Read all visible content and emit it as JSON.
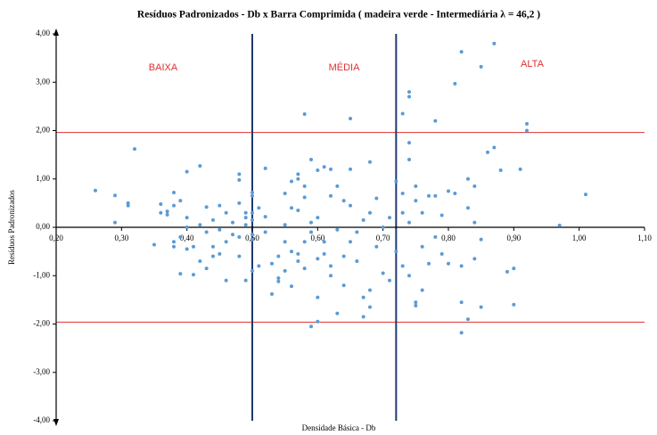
{
  "chart_data": {
    "type": "scatter",
    "title": "Resíduos Padronizados - Db x Barra Comprimida ( madeira verde - Intermediária λ = 46,2 )",
    "x_label": "Densidade Básica - Db",
    "y_label": "Resíduos Padronizados",
    "color": "#5b9bd5",
    "annotations": [
      {
        "text": "BAIXA",
        "color": "#e03030"
      },
      {
        "text": "MÉDIA",
        "color": "#e03030"
      },
      {
        "text": "ALTA",
        "color": "#e03030"
      }
    ],
    "vlines": [
      0.5,
      0.72
    ],
    "vline_color": "#1f3a6e",
    "hlines": [
      1.96,
      -1.96
    ],
    "hline_color": "#e03030",
    "xlim": [
      0.2,
      1.1
    ],
    "ylim": [
      -4,
      4
    ],
    "xticks": [
      {
        "value": 0.2,
        "label": "0,20"
      },
      {
        "value": 0.3,
        "label": "0,30"
      },
      {
        "value": 0.4,
        "label": "0,40"
      },
      {
        "value": 0.5,
        "label": "0,50"
      },
      {
        "value": 0.6,
        "label": "0,60"
      },
      {
        "value": 0.7,
        "label": "0,70"
      },
      {
        "value": 0.8,
        "label": "0,80"
      },
      {
        "value": 0.9,
        "label": "0,90"
      },
      {
        "value": 1.0,
        "label": "1,00"
      },
      {
        "value": 1.1,
        "label": "1,10"
      }
    ],
    "yticks": [
      {
        "value": -4,
        "label": "-4,00"
      },
      {
        "value": -3,
        "label": "-3,00"
      },
      {
        "value": -2,
        "label": "-2,00"
      },
      {
        "value": -1,
        "label": "-1,00"
      },
      {
        "value": 0,
        "label": "0,00"
      },
      {
        "value": 1,
        "label": "1,00"
      },
      {
        "value": 2,
        "label": "2,00"
      },
      {
        "value": 3,
        "label": "3,00"
      },
      {
        "value": 4,
        "label": "4,00"
      }
    ],
    "x": [
      0.26,
      0.29,
      0.29,
      0.31,
      0.31,
      0.32,
      0.35,
      0.36,
      0.36,
      0.37,
      0.37,
      0.38,
      0.38,
      0.38,
      0.38,
      0.39,
      0.39,
      0.39,
      0.4,
      0.4,
      0.4,
      0.4,
      0.41,
      0.41,
      0.42,
      0.42,
      0.42,
      0.43,
      0.43,
      0.43,
      0.44,
      0.44,
      0.44,
      0.45,
      0.45,
      0.45,
      0.46,
      0.46,
      0.46,
      0.47,
      0.47,
      0.48,
      0.48,
      0.48,
      0.48,
      0.48,
      0.49,
      0.49,
      0.49,
      0.49,
      0.5,
      0.5,
      0.5,
      0.5,
      0.5,
      0.5,
      0.5,
      0.51,
      0.51,
      0.52,
      0.52,
      0.52,
      0.53,
      0.53,
      0.54,
      0.54,
      0.54,
      0.55,
      0.55,
      0.55,
      0.55,
      0.56,
      0.56,
      0.56,
      0.56,
      0.57,
      0.57,
      0.57,
      0.57,
      0.57,
      0.58,
      0.58,
      0.58,
      0.58,
      0.58,
      0.59,
      0.59,
      0.59,
      0.59,
      0.6,
      0.6,
      0.6,
      0.6,
      0.6,
      0.61,
      0.61,
      0.61,
      0.62,
      0.62,
      0.62,
      0.62,
      0.63,
      0.63,
      0.63,
      0.64,
      0.64,
      0.64,
      0.65,
      0.65,
      0.65,
      0.65,
      0.66,
      0.66,
      0.67,
      0.67,
      0.67,
      0.68,
      0.68,
      0.68,
      0.68,
      0.69,
      0.69,
      0.7,
      0.7,
      0.71,
      0.71,
      0.72,
      0.72,
      0.73,
      0.73,
      0.73,
      0.73,
      0.74,
      0.74,
      0.74,
      0.74,
      0.74,
      0.74,
      0.75,
      0.75,
      0.75,
      0.75,
      0.76,
      0.76,
      0.76,
      0.77,
      0.77,
      0.78,
      0.78,
      0.78,
      0.79,
      0.79,
      0.8,
      0.8,
      0.81,
      0.81,
      0.82,
      0.82,
      0.82,
      0.82,
      0.83,
      0.83,
      0.83,
      0.84,
      0.84,
      0.84,
      0.85,
      0.85,
      0.85,
      0.86,
      0.87,
      0.87,
      0.88,
      0.89,
      0.9,
      0.9,
      0.91,
      0.92,
      0.92,
      0.97,
      1.01
    ],
    "values": [
      0.76,
      0.66,
      0.1,
      0.45,
      0.5,
      1.62,
      -0.36,
      0.48,
      0.3,
      0.26,
      0.33,
      0.72,
      0.45,
      -0.3,
      -0.4,
      0.55,
      -0.96,
      -0.2,
      0.0,
      1.15,
      0.2,
      -0.45,
      -0.98,
      -0.4,
      1.27,
      -0.7,
      0.05,
      0.42,
      -0.1,
      -0.85,
      0.15,
      -0.6,
      -0.4,
      -0.05,
      0.45,
      -0.55,
      -0.3,
      0.3,
      -1.1,
      0.1,
      -0.15,
      1.1,
      0.98,
      0.5,
      -0.2,
      -0.6,
      0.3,
      0.2,
      -1.1,
      0.05,
      0.72,
      0.65,
      0.3,
      0.15,
      -0.25,
      -0.9,
      -0.15,
      0.4,
      -0.8,
      1.22,
      0.22,
      -0.1,
      -1.38,
      -0.75,
      -1.12,
      -1.05,
      -0.6,
      0.7,
      0.05,
      -0.3,
      -0.9,
      0.95,
      0.4,
      -0.5,
      -1.22,
      1.0,
      1.1,
      0.35,
      -0.55,
      -0.7,
      2.34,
      0.85,
      0.62,
      -0.3,
      -0.85,
      1.4,
      -2.05,
      -0.1,
      0.1,
      1.18,
      0.2,
      -0.65,
      -1.45,
      -1.95,
      1.25,
      -0.3,
      -0.55,
      1.2,
      0.65,
      -0.8,
      -1.0,
      0.85,
      -1.78,
      -0.05,
      0.55,
      -0.6,
      -1.2,
      2.25,
      1.2,
      0.45,
      -0.3,
      -0.1,
      -0.7,
      0.15,
      -1.85,
      -1.45,
      1.35,
      0.3,
      -1.3,
      -1.65,
      0.6,
      -0.4,
      -0.95,
      0.0,
      0.2,
      -1.1,
      0.95,
      -0.5,
      2.35,
      0.7,
      0.3,
      -0.8,
      2.8,
      2.7,
      1.75,
      1.4,
      -1.0,
      0.1,
      0.85,
      -1.55,
      -1.62,
      0.55,
      0.3,
      -0.4,
      -1.3,
      0.65,
      -0.75,
      2.2,
      0.65,
      -0.2,
      0.25,
      -0.55,
      0.75,
      -0.75,
      2.97,
      0.7,
      3.63,
      -1.55,
      -2.18,
      -0.8,
      1.0,
      -1.9,
      0.4,
      0.85,
      0.1,
      -0.65,
      3.32,
      -0.25,
      -1.65,
      1.55,
      3.8,
      1.65,
      1.18,
      -0.92,
      -0.85,
      -1.6,
      1.2,
      2.14,
      2.0,
      0.04,
      0.68
    ]
  }
}
